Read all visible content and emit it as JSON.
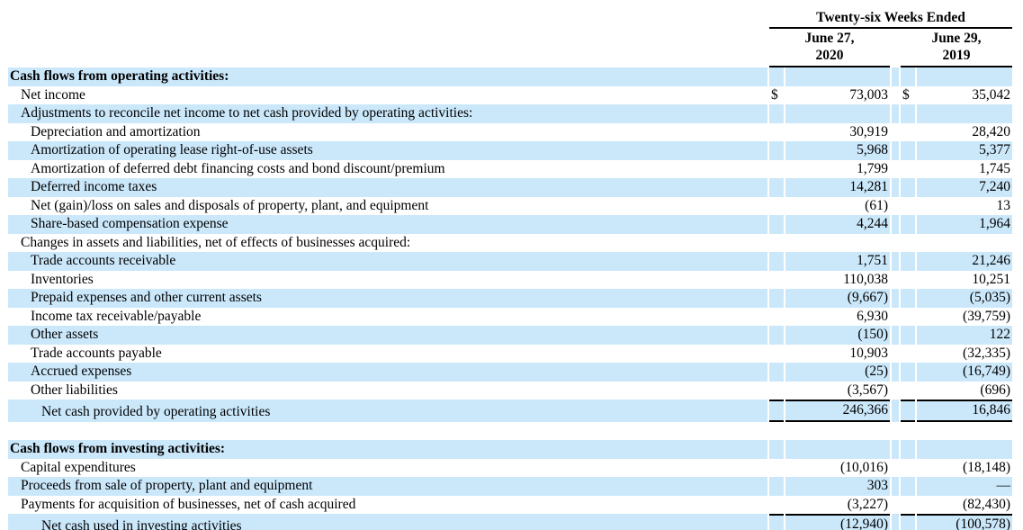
{
  "header": {
    "group_title": "Twenty-six Weeks Ended",
    "col_2020": "June 27,\n2020",
    "col_2019": "June 29,\n2019"
  },
  "colors": {
    "row_shade": "#cbe8fb",
    "rule": "#000000",
    "text": "#000000"
  },
  "table": {
    "rows": [
      {
        "label": "Cash flows from operating activities:",
        "indent": 0,
        "bold": true,
        "shaded": true
      },
      {
        "label": "Net income",
        "indent": 1,
        "shaded": false,
        "d1": "$",
        "v1": "73,003",
        "d2": "$",
        "v2": "35,042"
      },
      {
        "label": "Adjustments to reconcile net income to net cash provided by operating activities:",
        "indent": 1,
        "shaded": true
      },
      {
        "label": "Depreciation and amortization",
        "indent": 2,
        "shaded": false,
        "v1": "30,919",
        "v2": "28,420"
      },
      {
        "label": "Amortization of operating lease right-of-use assets",
        "indent": 2,
        "shaded": true,
        "v1": "5,968",
        "v2": "5,377"
      },
      {
        "label": "Amortization of deferred debt financing costs and bond discount/premium",
        "indent": 2,
        "shaded": false,
        "v1": "1,799",
        "v2": "1,745"
      },
      {
        "label": "Deferred income taxes",
        "indent": 2,
        "shaded": true,
        "v1": "14,281",
        "v2": "7,240"
      },
      {
        "label": "Net (gain)/loss on sales and disposals of property, plant, and equipment",
        "indent": 2,
        "shaded": false,
        "v1": "(61)",
        "v2": "13"
      },
      {
        "label": "Share-based compensation expense",
        "indent": 2,
        "shaded": true,
        "v1": "4,244",
        "v2": "1,964"
      },
      {
        "label": "Changes in assets and liabilities, net of effects of businesses acquired:",
        "indent": 1,
        "shaded": false
      },
      {
        "label": "Trade accounts receivable",
        "indent": 2,
        "shaded": true,
        "v1": "1,751",
        "v2": "21,246"
      },
      {
        "label": "Inventories",
        "indent": 2,
        "shaded": false,
        "v1": "110,038",
        "v2": "10,251"
      },
      {
        "label": "Prepaid expenses and other current assets",
        "indent": 2,
        "shaded": true,
        "v1": "(9,667)",
        "v2": "(5,035)"
      },
      {
        "label": "Income tax receivable/payable",
        "indent": 2,
        "shaded": false,
        "v1": "6,930",
        "v2": "(39,759)"
      },
      {
        "label": "Other assets",
        "indent": 2,
        "shaded": true,
        "v1": "(150)",
        "v2": "122"
      },
      {
        "label": "Trade accounts payable",
        "indent": 2,
        "shaded": false,
        "v1": "10,903",
        "v2": "(32,335)"
      },
      {
        "label": "Accrued expenses",
        "indent": 2,
        "shaded": true,
        "v1": "(25)",
        "v2": "(16,749)"
      },
      {
        "label": "Other liabilities",
        "indent": 2,
        "shaded": false,
        "v1": "(3,567)",
        "v2": "(696)"
      },
      {
        "label": "Net cash provided by operating activities",
        "indent": 3,
        "shaded": true,
        "rules": true,
        "v1": "246,366",
        "v2": "16,846"
      },
      {
        "label": "",
        "indent": 0,
        "shaded": false
      },
      {
        "label": "Cash flows from investing activities:",
        "indent": 0,
        "bold": true,
        "shaded": true
      },
      {
        "label": "Capital expenditures",
        "indent": 1,
        "shaded": false,
        "v1": "(10,016)",
        "v2": "(18,148)"
      },
      {
        "label": "Proceeds from sale of property, plant and equipment",
        "indent": 1,
        "shaded": true,
        "v1": "303",
        "v2": "—"
      },
      {
        "label": "Payments for acquisition of businesses, net of cash acquired",
        "indent": 1,
        "shaded": false,
        "v1": "(3,227)",
        "v2": "(82,430)"
      },
      {
        "label": "Net cash used in investing activities",
        "indent": 3,
        "shaded": true,
        "rules": true,
        "v1": "(12,940)",
        "v2": "(100,578)"
      }
    ]
  }
}
